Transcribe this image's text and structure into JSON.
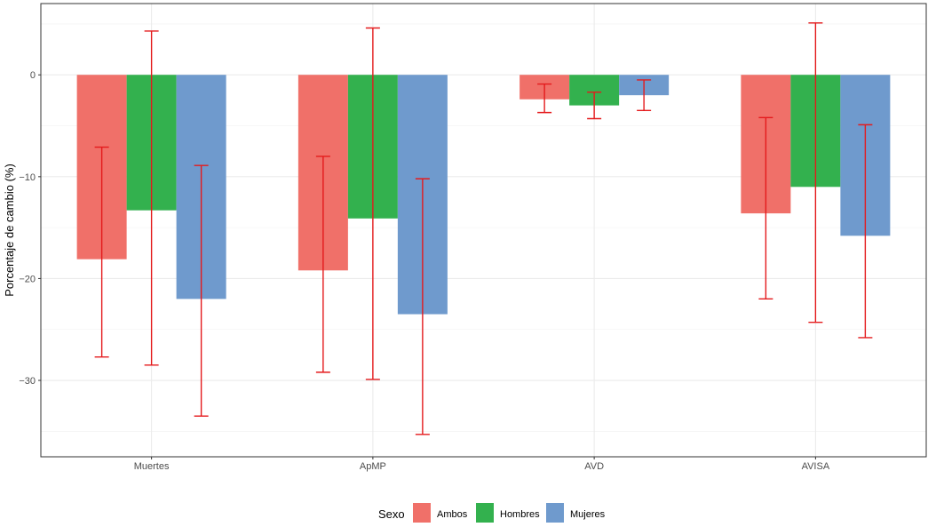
{
  "chart_data": {
    "type": "bar",
    "title": "",
    "xlabel": "",
    "ylabel": "Porcentaje de cambio (%)",
    "categories": [
      "Muertes",
      "ApMP",
      "AVD",
      "AVISA"
    ],
    "ylim": [
      -37.5,
      7
    ],
    "yticks": [
      0,
      -10,
      -20,
      -30
    ],
    "ytick_labels": [
      "0",
      "−10",
      "−20",
      "−30"
    ],
    "grid": true,
    "legend_title": "Sexo",
    "legend_position": "bottom",
    "error_bar_color": "#e41a1c",
    "series": [
      {
        "name": "Ambos",
        "color": "#f07069",
        "values": [
          -18.1,
          -19.2,
          -2.4,
          -13.6
        ],
        "ci_low": [
          -27.7,
          -29.2,
          -3.7,
          -22.0
        ],
        "ci_high": [
          -7.1,
          -8.0,
          -0.9,
          -4.2
        ]
      },
      {
        "name": "Hombres",
        "color": "#33b14e",
        "values": [
          -13.3,
          -14.1,
          -3.0,
          -11.0
        ],
        "ci_low": [
          -28.5,
          -29.9,
          -4.3,
          -24.3
        ],
        "ci_high": [
          4.3,
          4.6,
          -1.7,
          5.1
        ]
      },
      {
        "name": "Mujeres",
        "color": "#6f9acd",
        "values": [
          -22.0,
          -23.5,
          -2.0,
          -15.8
        ],
        "ci_low": [
          -33.5,
          -35.3,
          -3.5,
          -25.8
        ],
        "ci_high": [
          -8.9,
          -10.2,
          -0.5,
          -4.9
        ]
      }
    ]
  }
}
